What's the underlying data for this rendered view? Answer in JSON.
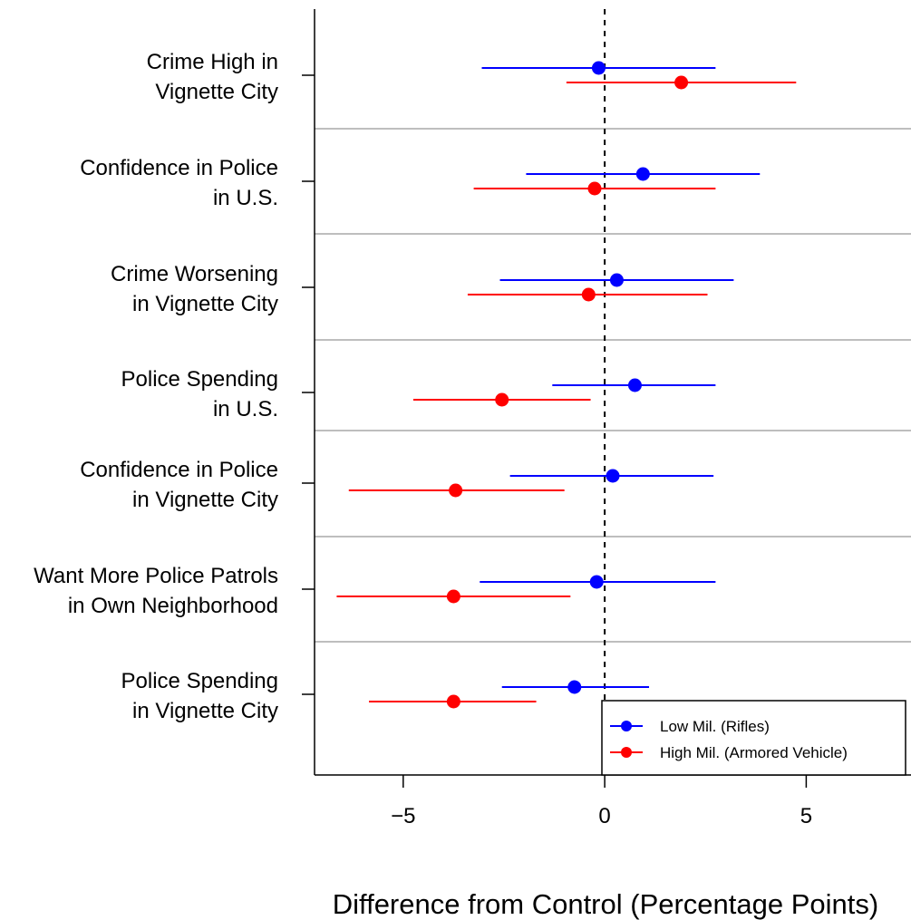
{
  "chart_data": {
    "type": "scatter",
    "xlabel": "Difference from Control (Percentage Points)",
    "xlim": [
      -7.2,
      7.6
    ],
    "xticks": [
      -5,
      0,
      5
    ],
    "xtick_labels": [
      "−5",
      "0",
      "5"
    ],
    "reference_line": 0,
    "grid": "horizontal separators between outcome groups",
    "legend_position": "bottom-right",
    "colors": {
      "low": "#0000ff",
      "high": "#ff0000"
    },
    "categories": [
      {
        "lines": [
          "Crime High in",
          "Vignette City"
        ]
      },
      {
        "lines": [
          "Confidence in Police",
          "in U.S."
        ]
      },
      {
        "lines": [
          "Crime Worsening",
          "in Vignette City"
        ]
      },
      {
        "lines": [
          "Police Spending",
          "in U.S."
        ]
      },
      {
        "lines": [
          "Confidence in Police",
          "in Vignette City"
        ]
      },
      {
        "lines": [
          "Want More Police Patrols",
          "in Own Neighborhood"
        ]
      },
      {
        "lines": [
          "Police Spending",
          "in Vignette City"
        ]
      }
    ],
    "series": [
      {
        "name": "Low Mil. (Rifles)",
        "color": "#0000ff",
        "points": [
          {
            "estimate": -0.15,
            "lower": -3.05,
            "upper": 2.75
          },
          {
            "estimate": 0.95,
            "lower": -1.95,
            "upper": 3.85
          },
          {
            "estimate": 0.3,
            "lower": -2.6,
            "upper": 3.2
          },
          {
            "estimate": 0.75,
            "lower": -1.3,
            "upper": 2.75
          },
          {
            "estimate": 0.2,
            "lower": -2.35,
            "upper": 2.7
          },
          {
            "estimate": -0.2,
            "lower": -3.1,
            "upper": 2.75
          },
          {
            "estimate": -0.75,
            "lower": -2.55,
            "upper": 1.1
          }
        ]
      },
      {
        "name": "High Mil. (Armored Vehicle)",
        "color": "#ff0000",
        "points": [
          {
            "estimate": 1.9,
            "lower": -0.95,
            "upper": 4.75
          },
          {
            "estimate": -0.25,
            "lower": -3.25,
            "upper": 2.75
          },
          {
            "estimate": -0.4,
            "lower": -3.4,
            "upper": 2.55
          },
          {
            "estimate": -2.55,
            "lower": -4.75,
            "upper": -0.35
          },
          {
            "estimate": -3.7,
            "lower": -6.35,
            "upper": -1.0
          },
          {
            "estimate": -3.75,
            "lower": -6.65,
            "upper": -0.85
          },
          {
            "estimate": -3.75,
            "lower": -5.85,
            "upper": -1.7
          }
        ]
      }
    ]
  }
}
